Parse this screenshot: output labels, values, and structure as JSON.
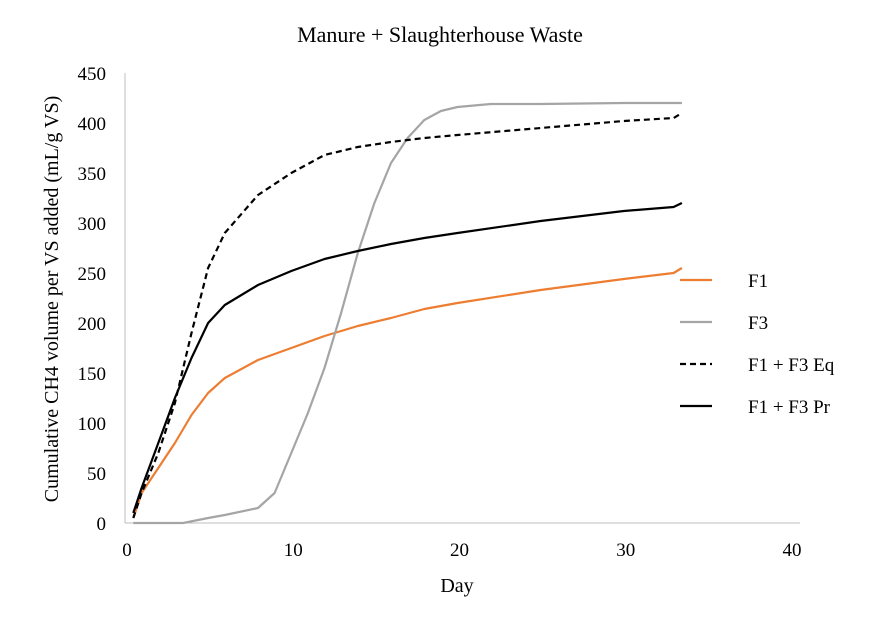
{
  "chart_data": {
    "type": "line",
    "title": "Manure + Slaughterhouse  Waste",
    "xlabel": "Day",
    "ylabel": "Cumulative CH4 volume per VS added (mL/g VS)",
    "xlim": [
      0,
      40
    ],
    "ylim": [
      0,
      450
    ],
    "xticks": [
      0,
      10,
      20,
      30,
      40
    ],
    "yticks": [
      0,
      50,
      100,
      150,
      200,
      250,
      300,
      350,
      400,
      450
    ],
    "grid": false,
    "legend_position": "right",
    "series": [
      {
        "name": "F1",
        "color": "#ED7D31",
        "dash": "solid",
        "x": [
          0.5,
          1,
          2,
          3,
          4,
          5,
          6,
          8,
          10,
          12,
          14,
          16,
          18,
          20,
          25,
          30,
          33,
          33.5
        ],
        "y": [
          5,
          30,
          55,
          80,
          108,
          130,
          145,
          163,
          175,
          187,
          197,
          205,
          214,
          220,
          233,
          244,
          250,
          255
        ]
      },
      {
        "name": "F3",
        "color": "#A5A5A5",
        "dash": "solid",
        "x": [
          0.5,
          3.5,
          5,
          6,
          8,
          9,
          10,
          11,
          12,
          13,
          14,
          15,
          16,
          17,
          18,
          19,
          20,
          22,
          25,
          30,
          33.5
        ],
        "y": [
          0,
          0,
          5,
          8,
          15,
          30,
          70,
          110,
          155,
          210,
          270,
          320,
          360,
          385,
          403,
          412,
          416,
          419,
          419,
          420,
          420
        ]
      },
      {
        "name": "F1 + F3 Eq",
        "color": "#000000",
        "dash": "dashed",
        "x": [
          0.5,
          1,
          2,
          3,
          4,
          5,
          6,
          8,
          10,
          12,
          14,
          16,
          18,
          20,
          25,
          30,
          33,
          33.5
        ],
        "y": [
          5,
          30,
          70,
          120,
          190,
          255,
          290,
          328,
          350,
          368,
          376,
          381,
          385,
          388,
          395,
          402,
          405,
          410
        ]
      },
      {
        "name": "F1 + F3 Pr",
        "color": "#000000",
        "dash": "solid",
        "x": [
          0.5,
          1,
          2,
          3,
          4,
          5,
          6,
          8,
          10,
          12,
          14,
          16,
          18,
          20,
          25,
          30,
          33,
          33.5
        ],
        "y": [
          10,
          35,
          80,
          125,
          165,
          200,
          218,
          238,
          252,
          264,
          272,
          279,
          285,
          290,
          302,
          312,
          316,
          320
        ]
      }
    ]
  }
}
